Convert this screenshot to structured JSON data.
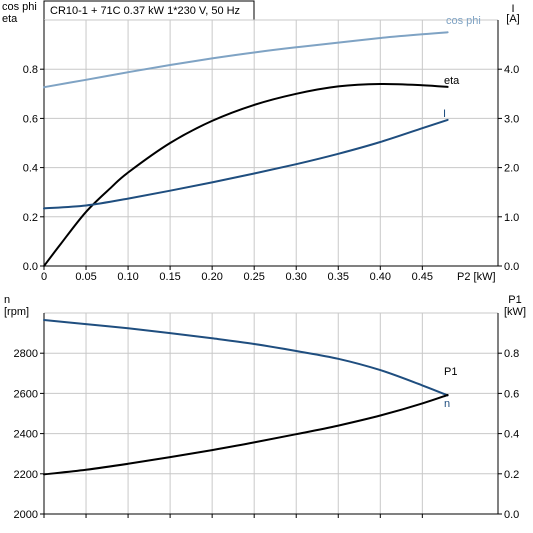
{
  "header": {
    "text": "CR10-1 + 71C   0.37 kW   1*230 V, 50 Hz"
  },
  "chart_data": [
    {
      "type": "line",
      "x_tick_labels": [
        "0",
        "0.05",
        "0.10",
        "0.15",
        "0.20",
        "0.25",
        "0.30",
        "0.35",
        "0.40",
        "0.45"
      ],
      "xlim": [
        0,
        0.54
      ],
      "xlabel": "P2 [kW]",
      "ylabel_left": [
        "cos phi",
        "eta"
      ],
      "ylim_left": [
        0,
        1.0
      ],
      "y_ticks_left": [
        "0.0",
        "0.2",
        "0.4",
        "0.6",
        "0.8"
      ],
      "ylabel_right": [
        "I",
        "[A]"
      ],
      "ylim_right": [
        0,
        5.0
      ],
      "y_ticks_right": [
        "0.0",
        "1.0",
        "2.0",
        "3.0",
        "4.0"
      ],
      "grid": true,
      "series": [
        {
          "name": "cos phi",
          "axis": "left",
          "color": "#7fa3c4",
          "x": [
            0,
            0.05,
            0.1,
            0.15,
            0.2,
            0.25,
            0.3,
            0.35,
            0.4,
            0.45,
            0.48
          ],
          "values": [
            0.727,
            0.757,
            0.788,
            0.817,
            0.844,
            0.868,
            0.889,
            0.908,
            0.927,
            0.942,
            0.95
          ]
        },
        {
          "name": "eta",
          "axis": "left",
          "color": "#000000",
          "x": [
            0,
            0.02,
            0.05,
            0.08,
            0.1,
            0.15,
            0.2,
            0.25,
            0.3,
            0.35,
            0.4,
            0.45,
            0.48
          ],
          "values": [
            0.0,
            0.09,
            0.22,
            0.32,
            0.38,
            0.5,
            0.59,
            0.655,
            0.7,
            0.73,
            0.74,
            0.735,
            0.728
          ]
        },
        {
          "name": "I",
          "axis": "right",
          "color": "#1f4e7f",
          "x": [
            0,
            0.05,
            0.1,
            0.15,
            0.2,
            0.25,
            0.3,
            0.35,
            0.4,
            0.45,
            0.48
          ],
          "values": [
            1.17,
            1.23,
            1.37,
            1.53,
            1.7,
            1.88,
            2.07,
            2.28,
            2.52,
            2.8,
            2.97
          ]
        }
      ]
    },
    {
      "type": "line",
      "xlim": [
        0,
        0.54
      ],
      "ylabel_left": [
        "n",
        "[rpm]"
      ],
      "ylim_left": [
        2000,
        3000
      ],
      "y_ticks_left": [
        "2000",
        "2200",
        "2400",
        "2600",
        "2800"
      ],
      "ylabel_right": [
        "P1",
        "[kW]"
      ],
      "ylim_right": [
        0,
        1.0
      ],
      "y_ticks_right": [
        "0.0",
        "0.2",
        "0.4",
        "0.6",
        "0.8"
      ],
      "grid": true,
      "series": [
        {
          "name": "n",
          "axis": "left",
          "color": "#1f4e7f",
          "x": [
            0,
            0.05,
            0.1,
            0.15,
            0.2,
            0.25,
            0.3,
            0.35,
            0.4,
            0.45,
            0.48
          ],
          "values": [
            2965,
            2945,
            2924,
            2900,
            2874,
            2846,
            2811,
            2772,
            2716,
            2640,
            2590
          ]
        },
        {
          "name": "P1",
          "axis": "right",
          "color": "#000000",
          "x": [
            0,
            0.05,
            0.1,
            0.15,
            0.2,
            0.25,
            0.3,
            0.35,
            0.4,
            0.45,
            0.48
          ],
          "values": [
            0.197,
            0.22,
            0.25,
            0.283,
            0.318,
            0.356,
            0.397,
            0.44,
            0.49,
            0.55,
            0.592
          ]
        }
      ]
    }
  ]
}
